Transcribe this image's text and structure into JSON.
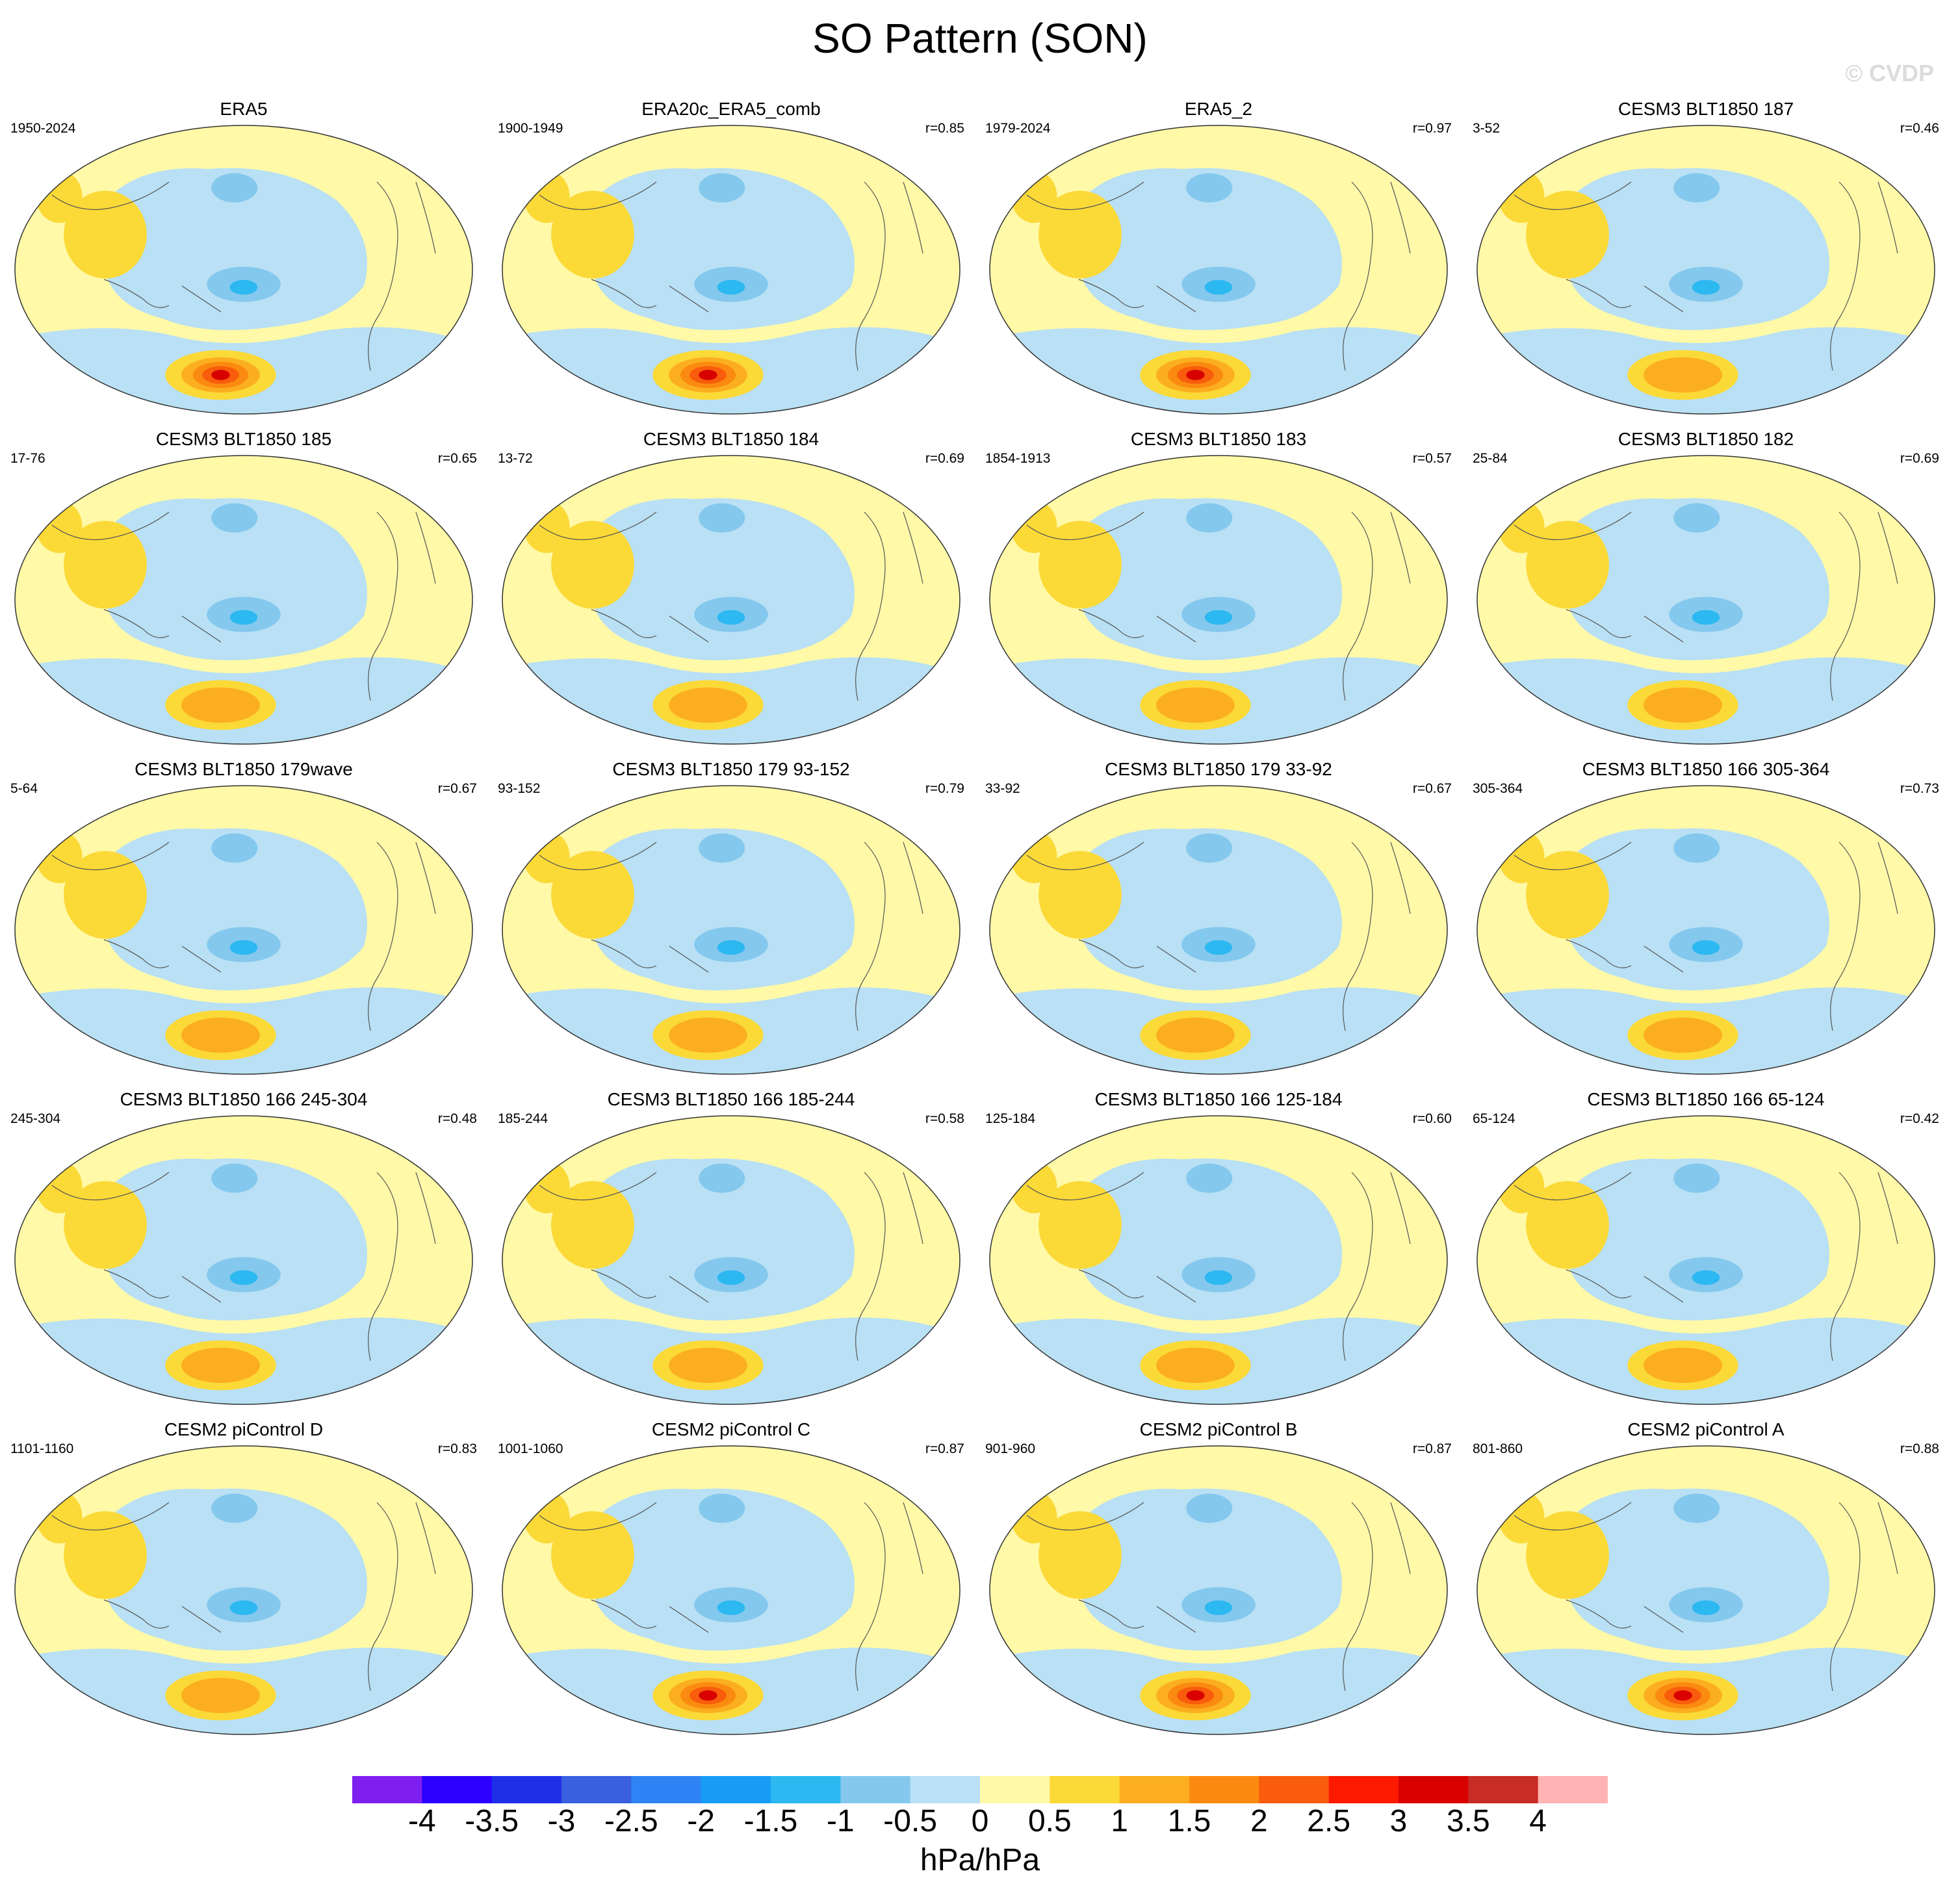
{
  "title": "SO Pattern (SON)",
  "watermark": "© CVDP",
  "colorbar": {
    "units": "hPa/hPa",
    "labels": [
      "-4",
      "-3.5",
      "-3",
      "-2.5",
      "-2",
      "-1.5",
      "-1",
      "-0.5",
      "0",
      "0.5",
      "1",
      "1.5",
      "2",
      "2.5",
      "3",
      "3.5",
      "4"
    ],
    "colors": [
      "#7f1fef",
      "#2b00ff",
      "#1f2fe8",
      "#3a60e0",
      "#2f84f5",
      "#179df5",
      "#2cb8f0",
      "#84c8ee",
      "#b9e0f4",
      "#fff9a8",
      "#fbd937",
      "#fbae1f",
      "#fb8a10",
      "#f85c0c",
      "#fb1a00",
      "#d90000",
      "#c82c26",
      "#ffb3b3"
    ]
  },
  "panels": [
    {
      "title": "ERA5",
      "years": "1950-2024",
      "corr": ""
    },
    {
      "title": "ERA20c_ERA5_comb",
      "years": "1900-1949",
      "corr": "r=0.85"
    },
    {
      "title": "ERA5_2",
      "years": "1979-2024",
      "corr": "r=0.97"
    },
    {
      "title": "CESM3 BLT1850 187",
      "years": "3-52",
      "corr": "r=0.46"
    },
    {
      "title": "CESM3 BLT1850 185",
      "years": "17-76",
      "corr": "r=0.65"
    },
    {
      "title": "CESM3 BLT1850 184",
      "years": "13-72",
      "corr": "r=0.69"
    },
    {
      "title": "CESM3 BLT1850 183",
      "years": "1854-1913",
      "corr": "r=0.57"
    },
    {
      "title": "CESM3 BLT1850 182",
      "years": "25-84",
      "corr": "r=0.69"
    },
    {
      "title": "CESM3 BLT1850 179wave",
      "years": "5-64",
      "corr": "r=0.67"
    },
    {
      "title": "CESM3 BLT1850 179 93-152",
      "years": "93-152",
      "corr": "r=0.79"
    },
    {
      "title": "CESM3 BLT1850 179 33-92",
      "years": "33-92",
      "corr": "r=0.67"
    },
    {
      "title": "CESM3 BLT1850 166 305-364",
      "years": "305-364",
      "corr": "r=0.73"
    },
    {
      "title": "CESM3 BLT1850 166 245-304",
      "years": "245-304",
      "corr": "r=0.48"
    },
    {
      "title": "CESM3 BLT1850 166 185-244",
      "years": "185-244",
      "corr": "r=0.58"
    },
    {
      "title": "CESM3 BLT1850 166 125-184",
      "years": "125-184",
      "corr": "r=0.60"
    },
    {
      "title": "CESM3 BLT1850 166 65-124",
      "years": "65-124",
      "corr": "r=0.42"
    },
    {
      "title": "CESM2 piControl D",
      "years": "1101-1160",
      "corr": "r=0.83"
    },
    {
      "title": "CESM2 piControl C",
      "years": "1001-1060",
      "corr": "r=0.87"
    },
    {
      "title": "CESM2 piControl B",
      "years": "901-960",
      "corr": "r=0.87"
    },
    {
      "title": "CESM2 piControl A",
      "years": "801-860",
      "corr": "r=0.88"
    }
  ]
}
